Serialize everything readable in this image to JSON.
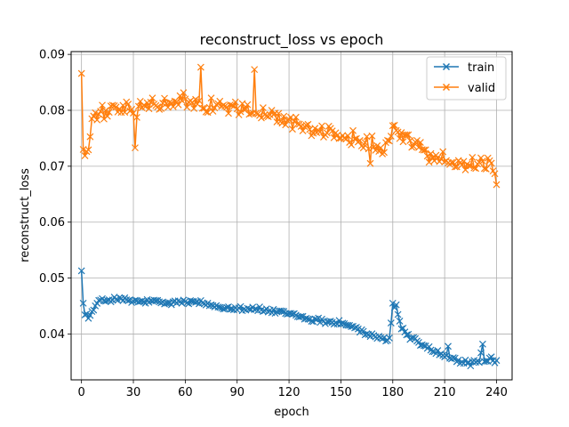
{
  "chart_data": {
    "type": "line",
    "title": "reconstruct_loss vs epoch",
    "xlabel": "epoch",
    "ylabel": "reconstruct_loss",
    "xlim": [
      -6,
      249
    ],
    "ylim": [
      0.0318,
      0.0905
    ],
    "xticks": [
      0,
      30,
      60,
      90,
      120,
      150,
      180,
      210,
      240
    ],
    "yticks": [
      0.04,
      0.05,
      0.06,
      0.07,
      0.08,
      0.09
    ],
    "grid": true,
    "legend_position": "top-right",
    "marker": "x",
    "series": [
      {
        "name": "train",
        "color": "#1f77b4",
        "anchors": [
          [
            0,
            0.0513
          ],
          [
            1,
            0.0455
          ],
          [
            2,
            0.044
          ],
          [
            3,
            0.0435
          ],
          [
            4,
            0.0428
          ],
          [
            6,
            0.0438
          ],
          [
            8,
            0.045
          ],
          [
            10,
            0.0458
          ],
          [
            15,
            0.0461
          ],
          [
            20,
            0.0463
          ],
          [
            30,
            0.0458
          ],
          [
            40,
            0.0458
          ],
          [
            50,
            0.0455
          ],
          [
            60,
            0.0458
          ],
          [
            70,
            0.0455
          ],
          [
            80,
            0.0448
          ],
          [
            90,
            0.0447
          ],
          [
            100,
            0.0445
          ],
          [
            110,
            0.044
          ],
          [
            120,
            0.0437
          ],
          [
            130,
            0.0428
          ],
          [
            140,
            0.0423
          ],
          [
            150,
            0.042
          ],
          [
            155,
            0.0415
          ],
          [
            160,
            0.0408
          ],
          [
            165,
            0.04
          ],
          [
            170,
            0.0393
          ],
          [
            176,
            0.039
          ],
          [
            178,
            0.0393
          ],
          [
            180,
            0.0445
          ],
          [
            182,
            0.045
          ],
          [
            185,
            0.041
          ],
          [
            190,
            0.0395
          ],
          [
            195,
            0.0385
          ],
          [
            200,
            0.0375
          ],
          [
            205,
            0.0368
          ],
          [
            210,
            0.036
          ],
          [
            215,
            0.0355
          ],
          [
            220,
            0.035
          ],
          [
            225,
            0.0347
          ],
          [
            230,
            0.035
          ],
          [
            232,
            0.038
          ],
          [
            233,
            0.035
          ],
          [
            236,
            0.0355
          ],
          [
            240,
            0.0352
          ]
        ],
        "noise": 0.0006,
        "spikes": [
          [
            0,
            0.0513
          ],
          [
            180,
            0.0455
          ],
          [
            232,
            0.0382
          ],
          [
            212,
            0.0378
          ]
        ]
      },
      {
        "name": "valid",
        "color": "#ff7f0e",
        "anchors": [
          [
            0,
            0.0865
          ],
          [
            1,
            0.073
          ],
          [
            2,
            0.0722
          ],
          [
            4,
            0.0732
          ],
          [
            6,
            0.078
          ],
          [
            10,
            0.079
          ],
          [
            20,
            0.0805
          ],
          [
            30,
            0.08
          ],
          [
            40,
            0.081
          ],
          [
            50,
            0.0812
          ],
          [
            60,
            0.0815
          ],
          [
            70,
            0.081
          ],
          [
            80,
            0.0808
          ],
          [
            90,
            0.0805
          ],
          [
            100,
            0.0795
          ],
          [
            110,
            0.079
          ],
          [
            120,
            0.0782
          ],
          [
            130,
            0.077
          ],
          [
            140,
            0.076
          ],
          [
            150,
            0.0752
          ],
          [
            160,
            0.075
          ],
          [
            170,
            0.074
          ],
          [
            175,
            0.0735
          ],
          [
            180,
            0.0765
          ],
          [
            185,
            0.076
          ],
          [
            190,
            0.0745
          ],
          [
            195,
            0.0735
          ],
          [
            200,
            0.072
          ],
          [
            210,
            0.071
          ],
          [
            220,
            0.0705
          ],
          [
            230,
            0.0705
          ],
          [
            238,
            0.0703
          ],
          [
            240,
            0.0668
          ]
        ],
        "noise": 0.0017,
        "spikes": [
          [
            0,
            0.0866
          ],
          [
            69,
            0.0877
          ],
          [
            100,
            0.0873
          ],
          [
            31,
            0.0733
          ],
          [
            167,
            0.0705
          ],
          [
            240,
            0.0667
          ]
        ]
      }
    ]
  }
}
